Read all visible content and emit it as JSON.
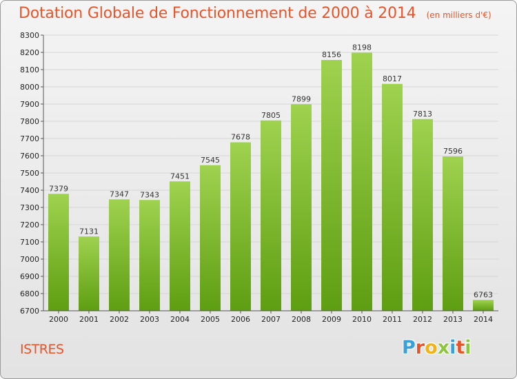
{
  "title": "Dotation Globale de Fonctionnement de 2000 à 2014",
  "unit_note": "(en milliers d'€)",
  "city": "ISTRES",
  "logo": "Proxiti",
  "colors": {
    "title": "#e8542a",
    "bar_top": "#9fd24f",
    "bar_bottom": "#5e9e12",
    "grid": "#d6d6d6"
  },
  "chart_data": {
    "type": "bar",
    "title": "Dotation Globale de Fonctionnement de 2000 à 2014",
    "subtitle": "(en milliers d'€)",
    "xlabel": "",
    "ylabel": "",
    "categories": [
      "2000",
      "2001",
      "2002",
      "2003",
      "2004",
      "2005",
      "2006",
      "2007",
      "2008",
      "2009",
      "2010",
      "2011",
      "2012",
      "2013",
      "2014"
    ],
    "values": [
      7379,
      7131,
      7347,
      7343,
      7451,
      7545,
      7678,
      7805,
      7899,
      8156,
      8198,
      8017,
      7813,
      7596,
      6763
    ],
    "ylim": [
      6700,
      8300
    ],
    "yticks": [
      6700,
      6800,
      6900,
      7000,
      7100,
      7200,
      7300,
      7400,
      7500,
      7600,
      7700,
      7800,
      7900,
      8000,
      8100,
      8200,
      8300
    ],
    "grid": true,
    "data_labels": true
  }
}
